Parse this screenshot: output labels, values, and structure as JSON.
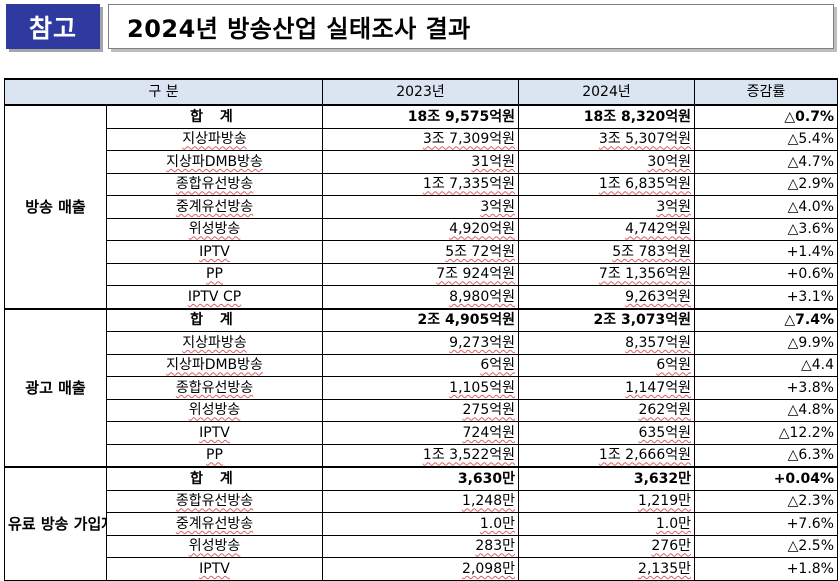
{
  "header": {
    "badge": "참고",
    "title": "2024년 방송산업 실태조사 결과"
  },
  "table": {
    "columns": [
      "구 분",
      "2023년",
      "2024년",
      "증감률"
    ],
    "sections": [
      {
        "group": "방송 매출",
        "rows": [
          {
            "item": "합 계",
            "y2023": "18조 9,575억원",
            "y2024": "18조 8,320억원",
            "change": "△0.7%",
            "total": true
          },
          {
            "item": "지상파방송",
            "y2023": "3조 7,309억원",
            "y2024": "3조 5,307억원",
            "change": "△5.4%"
          },
          {
            "item": "지상파DMB방송",
            "y2023": "31억원",
            "y2024": "30억원",
            "change": "△4.7%"
          },
          {
            "item": "종합유선방송",
            "y2023": "1조 7,335억원",
            "y2024": "1조 6,835억원",
            "change": "△2.9%"
          },
          {
            "item": "중계유선방송",
            "y2023": "3억원",
            "y2024": "3억원",
            "change": "△4.0%"
          },
          {
            "item": "위성방송",
            "y2023": "4,920억원",
            "y2024": "4,742억원",
            "change": "△3.6%"
          },
          {
            "item": "IPTV",
            "y2023": "5조 72억원",
            "y2024": "5조 783억원",
            "change": "+1.4%"
          },
          {
            "item": "PP",
            "y2023": "7조 924억원",
            "y2024": "7조 1,356억원",
            "change": "+0.6%"
          },
          {
            "item": "IPTV CP",
            "y2023": "8,980억원",
            "y2024": "9,263억원",
            "change": "+3.1%"
          }
        ]
      },
      {
        "group": "광고 매출",
        "rows": [
          {
            "item": "합 계",
            "y2023": "2조 4,905억원",
            "y2024": "2조 3,073억원",
            "change": "△7.4%",
            "total": true
          },
          {
            "item": "지상파방송",
            "y2023": "9,273억원",
            "y2024": "8,357억원",
            "change": "△9.9%"
          },
          {
            "item": "지상파DMB방송",
            "y2023": "6억원",
            "y2024": "6억원",
            "change": "△4.4"
          },
          {
            "item": "종합유선방송",
            "y2023": "1,105억원",
            "y2024": "1,147억원",
            "change": "+3.8%"
          },
          {
            "item": "위성방송",
            "y2023": "275억원",
            "y2024": "262억원",
            "change": "△4.8%"
          },
          {
            "item": "IPTV",
            "y2023": "724억원",
            "y2024": "635억원",
            "change": "△12.2%"
          },
          {
            "item": "PP",
            "y2023": "1조 3,522억원",
            "y2024": "1조 2,666억원",
            "change": "△6.3%"
          }
        ]
      },
      {
        "group": "유료 방송 가입자",
        "rows": [
          {
            "item": "합 계",
            "y2023": "3,630만",
            "y2024": "3,632만",
            "change": "+0.04%",
            "total": true
          },
          {
            "item": "종합유선방송",
            "y2023": "1,248만",
            "y2024": "1,219만",
            "change": "△2.3%"
          },
          {
            "item": "중계유선방송",
            "y2023": "1.0만",
            "y2024": "1.0만",
            "change": "+7.6%"
          },
          {
            "item": "위성방송",
            "y2023": "283만",
            "y2024": "276만",
            "change": "△2.5%"
          },
          {
            "item": "IPTV",
            "y2023": "2,098만",
            "y2024": "2,135만",
            "change": "+1.8%"
          }
        ]
      }
    ]
  }
}
